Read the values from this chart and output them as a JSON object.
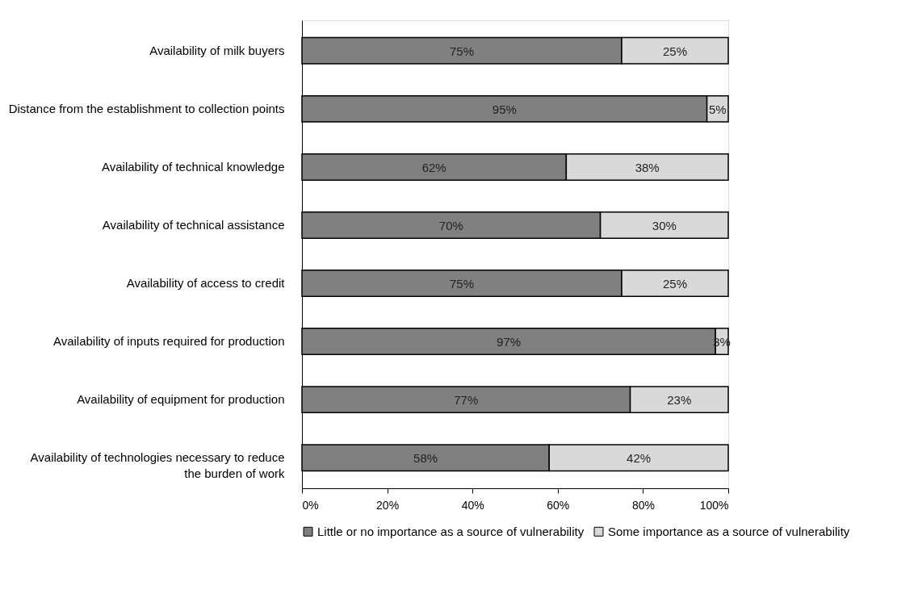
{
  "chart_data": {
    "type": "bar",
    "orientation": "horizontal",
    "stacked": true,
    "categories": [
      "Availability of milk buyers",
      "Distance from the establishment to collection points",
      "Availability of technical knowledge",
      "Availability of technical assistance",
      "Availability of access to credit",
      "Availability of inputs required for production",
      "Availability of equipment for production",
      "Availability of technologies necessary to reduce the burden of work"
    ],
    "series": [
      {
        "name": "Little or no importance as a source of vulnerability",
        "color": "#808080",
        "values": [
          75,
          95,
          62,
          70,
          75,
          97,
          77,
          58
        ],
        "value_labels": [
          "75%",
          "95%",
          "62%",
          "70%",
          "75%",
          "97%",
          "77%",
          "58%"
        ]
      },
      {
        "name": "Some importance as a source of vulnerability",
        "color": "#d9d9d9",
        "values": [
          25,
          5,
          38,
          30,
          25,
          3,
          23,
          42
        ],
        "value_labels": [
          "25%",
          "5%",
          "38%",
          "30%",
          "25%",
          "3%",
          "23%",
          "42%"
        ]
      }
    ],
    "xlim": [
      0,
      100
    ],
    "xticks": [
      {
        "value": 0,
        "label": "0%"
      },
      {
        "value": 20,
        "label": "20%"
      },
      {
        "value": 40,
        "label": "40%"
      },
      {
        "value": 60,
        "label": "60%"
      },
      {
        "value": 80,
        "label": "80%"
      },
      {
        "value": 100,
        "label": "100%"
      }
    ],
    "grid": false,
    "legend": "bottom"
  }
}
